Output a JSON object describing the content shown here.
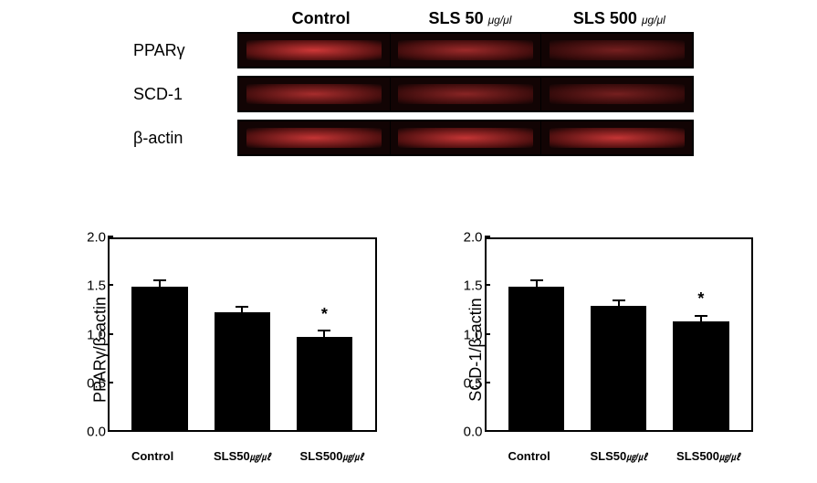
{
  "blot": {
    "column_headers": [
      "Control",
      "SLS 50",
      "SLS 500"
    ],
    "header_unit": "μg/μl",
    "rows": [
      {
        "label": "PPARγ",
        "intensities": [
          0.95,
          0.7,
          0.5
        ]
      },
      {
        "label": "SCD-1",
        "intensities": [
          0.75,
          0.6,
          0.5
        ]
      },
      {
        "label": "β-actin",
        "intensities": [
          0.9,
          0.9,
          0.9
        ]
      }
    ],
    "band_base_color": "#5a1212",
    "band_bright_color": "#d83a3a",
    "strip_bg": "#120404"
  },
  "chart_shared": {
    "ylim": [
      0.0,
      2.0
    ],
    "ytick_step": 0.5,
    "bar_color": "#000000",
    "background_color": "#ffffff",
    "tick_fontsize": 15,
    "label_fontsize": 18,
    "xlabels": [
      "Control",
      "SLS50",
      "SLS500"
    ],
    "xlabel_unit": "㎍/㎕",
    "significance_marker": "*"
  },
  "charts": [
    {
      "ylabel": "PPARγ/β-actin",
      "values": [
        1.5,
        1.23,
        0.98
      ],
      "errors": [
        0.06,
        0.05,
        0.05
      ],
      "sig": [
        false,
        false,
        true
      ]
    },
    {
      "ylabel": "SCD-1/β-actin",
      "values": [
        1.5,
        1.3,
        1.14
      ],
      "errors": [
        0.06,
        0.05,
        0.05
      ],
      "sig": [
        false,
        false,
        true
      ]
    }
  ]
}
